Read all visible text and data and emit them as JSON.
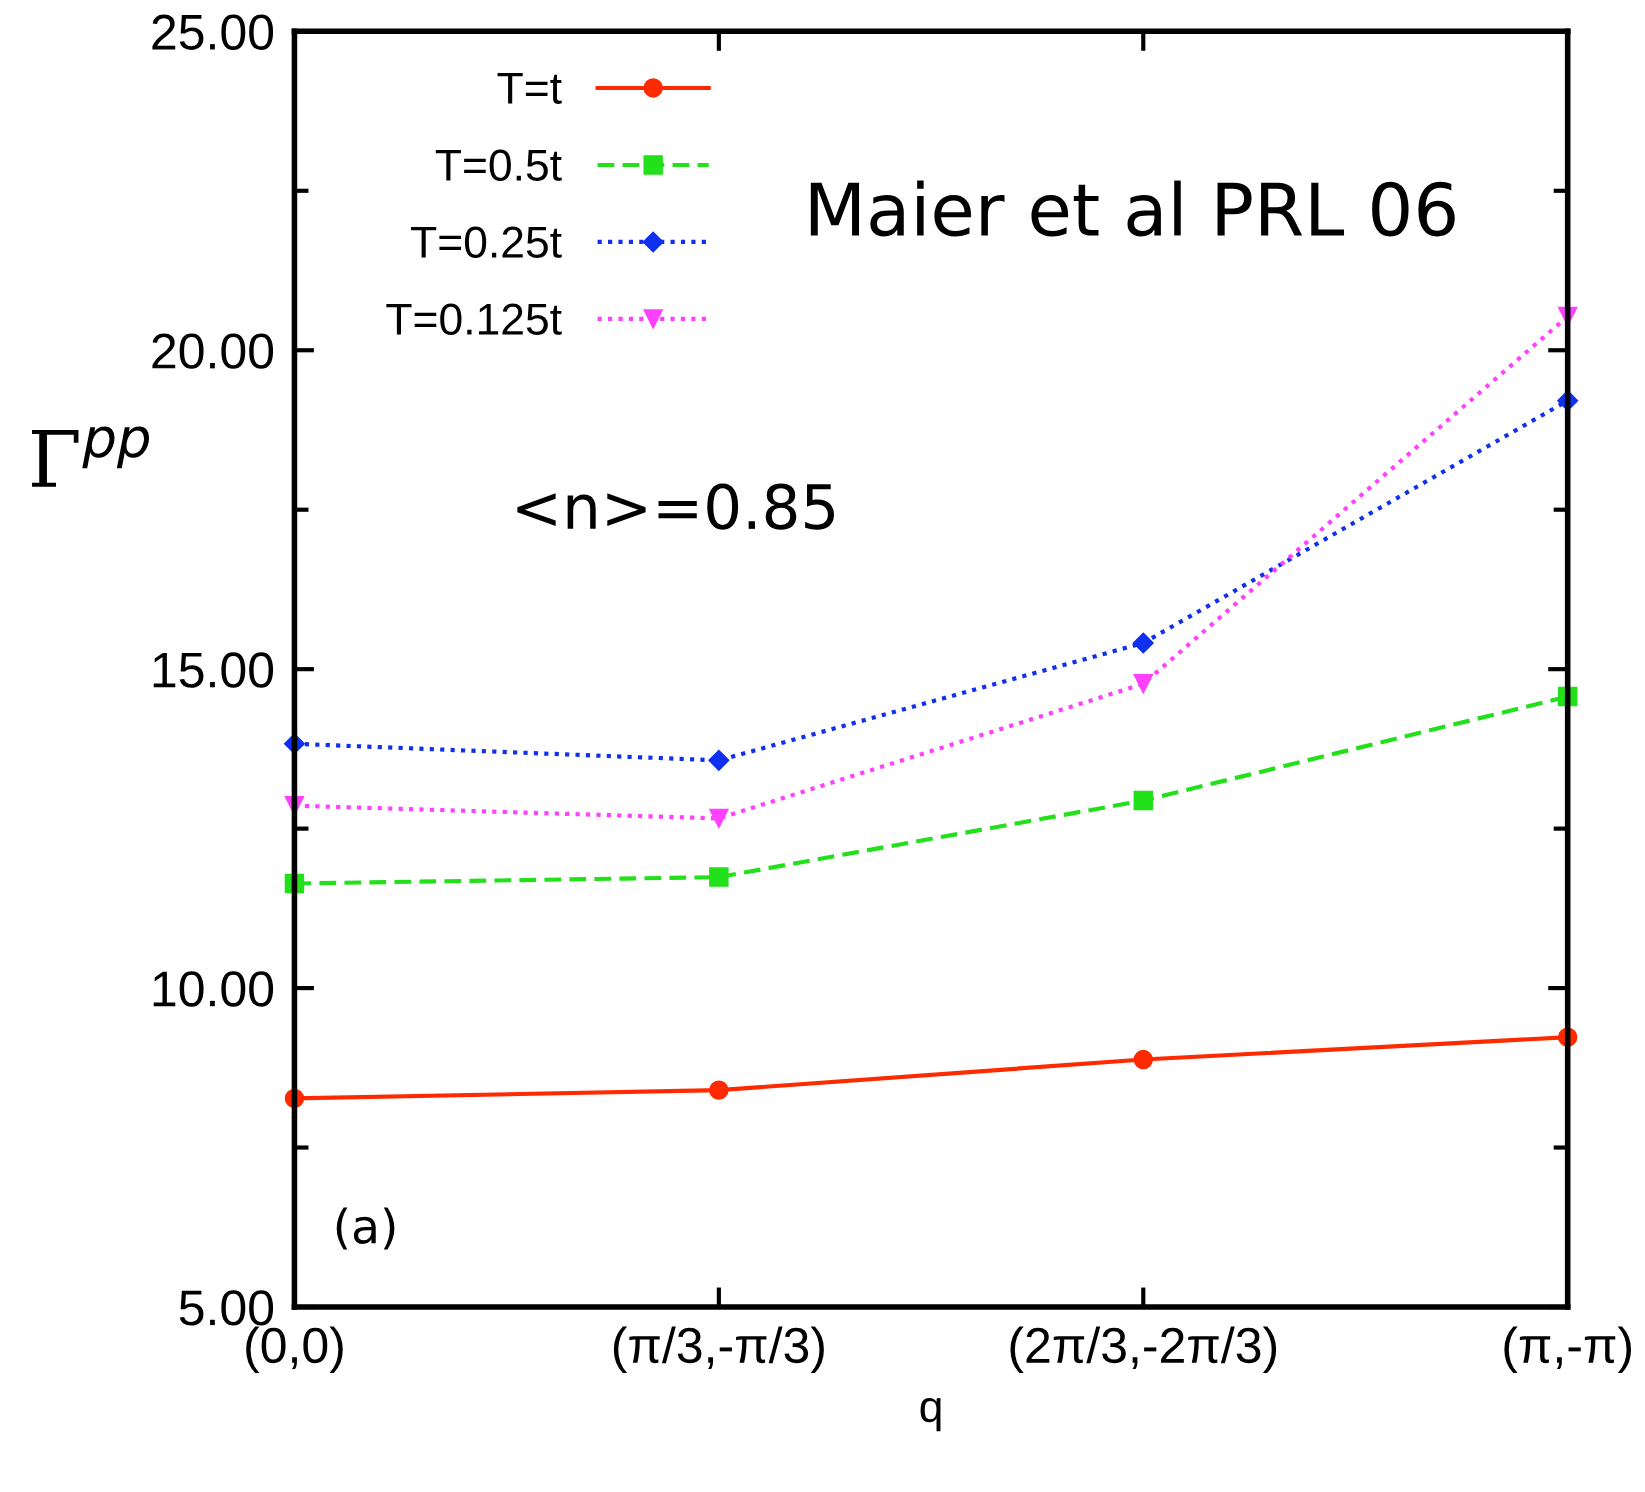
{
  "chart_data": {
    "type": "line",
    "xlabel": "q",
    "ylabel": "Γ$^{pp}$",
    "categories": [
      "(0,0)",
      "(π/3,-π/3)",
      "(2π/3,-2π/3)",
      "(π,-π)"
    ],
    "series": [
      {
        "name": "T=t",
        "color": "#ff2a00",
        "marker": "circle",
        "line_style": "solid",
        "values": [
          8.27,
          8.4,
          8.88,
          9.23
        ]
      },
      {
        "name": "T=0.5t",
        "color": "#22e01a",
        "marker": "square",
        "line_style": "dashed",
        "values": [
          11.64,
          11.74,
          12.94,
          14.57
        ]
      },
      {
        "name": "T=0.25t",
        "color": "#1030f0",
        "marker": "diamond",
        "line_style": "dotted",
        "values": [
          13.83,
          13.57,
          15.41,
          19.21
        ]
      },
      {
        "name": "T=0.125t",
        "color": "#ff40ff",
        "marker": "triangle",
        "line_style": "dotted",
        "values": [
          12.86,
          12.66,
          14.77,
          20.53
        ]
      }
    ],
    "ylim": [
      5,
      25
    ],
    "yticks": [
      {
        "value": 5,
        "label": "5.00"
      },
      {
        "value": 7.5,
        "label": null
      },
      {
        "value": 10,
        "label": "10.00"
      },
      {
        "value": 12.5,
        "label": null
      },
      {
        "value": 15,
        "label": "15.00"
      },
      {
        "value": 17.5,
        "label": null
      },
      {
        "value": 20,
        "label": "20.00"
      },
      {
        "value": 22.5,
        "label": null
      },
      {
        "value": 25,
        "label": "25.00"
      }
    ],
    "annotations": [
      "Maier et al PRL 06",
      "<n>=0.85",
      "(a)"
    ],
    "legend": "top left",
    "grid": false
  }
}
